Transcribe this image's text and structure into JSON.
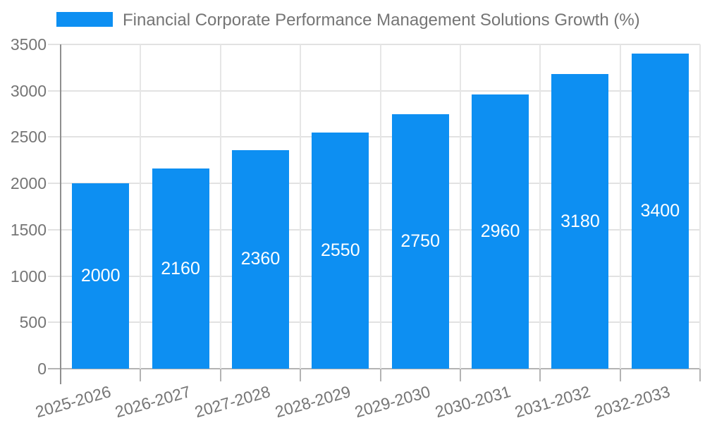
{
  "legend": {
    "label": "Financial Corporate Performance Management Solutions Growth (%)"
  },
  "chart_data": {
    "type": "bar",
    "title": "",
    "xlabel": "",
    "ylabel": "",
    "categories": [
      "2025-2026",
      "2026-2027",
      "2027-2028",
      "2028-2029",
      "2029-2030",
      "2030-2031",
      "2031-2032",
      "2032-2033"
    ],
    "values": [
      2000,
      2160,
      2360,
      2550,
      2750,
      2960,
      3180,
      3400
    ],
    "series_name": "Financial Corporate Performance Management Solutions Growth (%)",
    "ylim": [
      0,
      3500
    ],
    "yticks": [
      0,
      500,
      1000,
      1500,
      2000,
      2500,
      3000,
      3500
    ],
    "grid": true,
    "legend_position": "top",
    "bar_color": "#0d8ff2",
    "value_label_color": "#ffffff",
    "axis_text_color": "#757575"
  }
}
